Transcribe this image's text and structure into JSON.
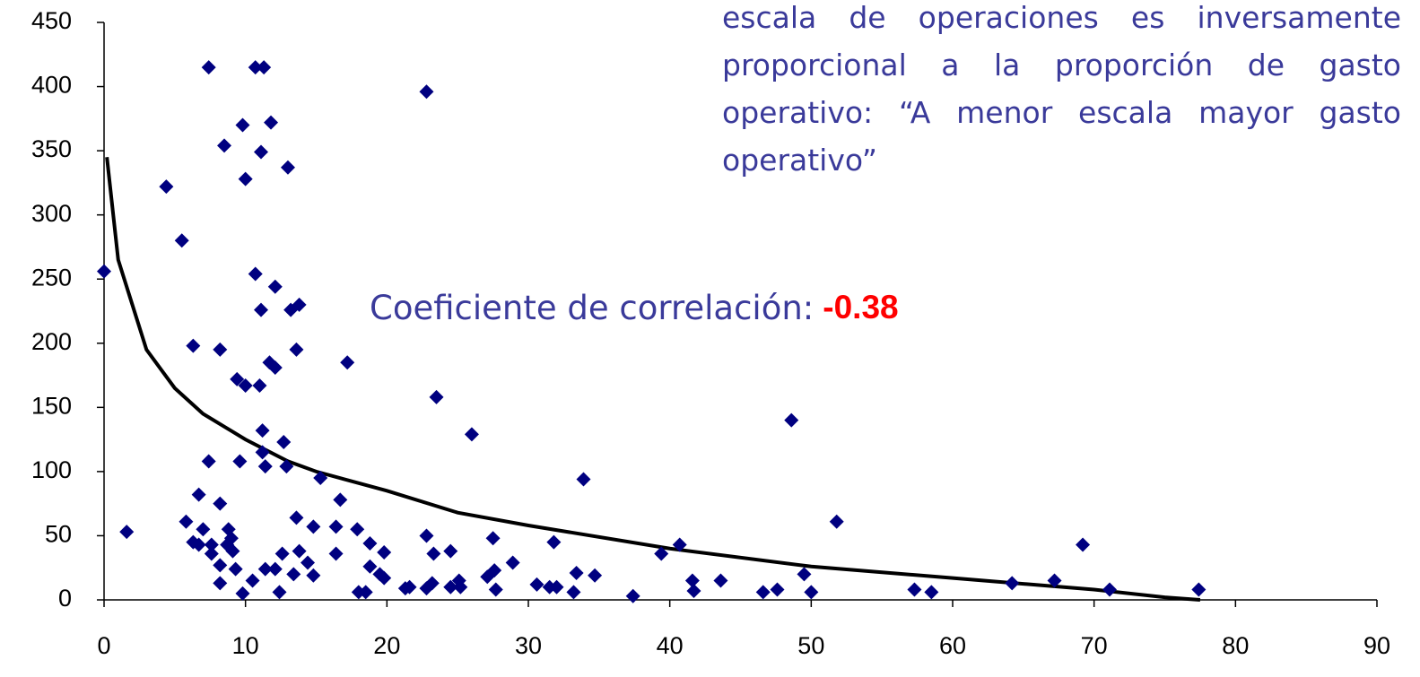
{
  "chart_data": {
    "type": "scatter",
    "xlim": [
      0,
      90
    ],
    "xticks": [
      0,
      10,
      20,
      30,
      40,
      50,
      60,
      70,
      80,
      90
    ],
    "ylim": [
      0,
      450
    ],
    "yticks": [
      0,
      50,
      100,
      150,
      200,
      250,
      300,
      350,
      400,
      450
    ],
    "series": [
      {
        "color": "#000080",
        "x": [
          0,
          1.6,
          4.4,
          5.5,
          5.8,
          6.3,
          6.3,
          6.7,
          6.7,
          7,
          7.4,
          7.4,
          7.6,
          7.6,
          8.2,
          8.2,
          8.5,
          8.2,
          8.2,
          8.7,
          8.8,
          9,
          9.1,
          9.3,
          9.4,
          9.6,
          9.8,
          9.8,
          10,
          10,
          10.5,
          10.7,
          11.3,
          10.7,
          11,
          11.1,
          11.1,
          11.2,
          11.2,
          11.4,
          11.4,
          11.7,
          11.8,
          12.1,
          12.1,
          12.1,
          12.4,
          12.6,
          12.7,
          12.9,
          13,
          13.2,
          13.8,
          13.6,
          13.4,
          13.6,
          13.8,
          14.4,
          14.8,
          14.8,
          15.3,
          16.4,
          16.4,
          16.7,
          17.2,
          17.9,
          18,
          18.5,
          18.8,
          18.8,
          19.5,
          19.8,
          19.8,
          21.3,
          21.6,
          22.8,
          22.8,
          22.8,
          23.3,
          23.5,
          23.2,
          24.5,
          24.5,
          25.1,
          25.2,
          26,
          27.1,
          27.5,
          27.6,
          27.7,
          28.9,
          30.6,
          31.5,
          31.8,
          32,
          33.2,
          33.4,
          33.9,
          34.7,
          37.4,
          39.4,
          40.7,
          41.6,
          41.7,
          43.6,
          46.6,
          47.6,
          48.6,
          49.5,
          50,
          51.8,
          57.3,
          58.5,
          64.2,
          67.2,
          69.2,
          71.1,
          77.4
        ],
        "values": [
          256,
          53,
          322,
          280,
          61,
          198,
          45,
          82,
          43,
          55,
          415,
          108,
          43,
          36,
          75,
          195,
          354,
          13,
          27,
          43,
          55,
          48,
          38,
          24,
          172,
          108,
          5,
          370,
          328,
          167,
          15,
          415,
          415,
          254,
          167,
          226,
          349,
          132,
          115,
          104,
          24,
          185,
          372,
          181,
          244,
          24,
          6,
          36,
          123,
          104,
          337,
          226,
          230,
          195,
          20,
          64,
          38,
          29,
          57,
          19,
          95,
          36,
          57,
          78,
          185,
          55,
          6,
          6,
          26,
          44,
          20,
          37,
          17,
          9,
          10,
          396,
          50,
          9,
          36,
          158,
          13,
          38,
          10,
          15,
          10,
          129,
          18,
          48,
          23,
          8,
          29,
          12,
          10,
          45,
          10,
          6,
          21,
          94,
          19,
          3,
          36,
          43,
          15,
          7,
          15,
          6,
          8,
          140,
          20,
          6,
          61,
          8,
          6,
          13,
          15,
          43,
          8,
          8
        ]
      }
    ],
    "trendline": {
      "color": "#000000",
      "x": [
        0.2,
        1,
        2,
        3,
        4,
        5,
        7,
        10,
        13,
        15,
        20,
        25,
        30,
        40,
        50,
        60,
        70,
        75,
        77.5
      ],
      "values": [
        345,
        265,
        230,
        195,
        180,
        165,
        145,
        125,
        108,
        100,
        85,
        68,
        58,
        40,
        26,
        17,
        8,
        2,
        0
      ]
    },
    "annotation": "escala de operaciones es inversamente proporcional a la proporción de gasto operativo: “A menor escala mayor gasto operativo”",
    "correlation_label": "Coeficiente de correlación:",
    "correlation_value": -0.38
  }
}
